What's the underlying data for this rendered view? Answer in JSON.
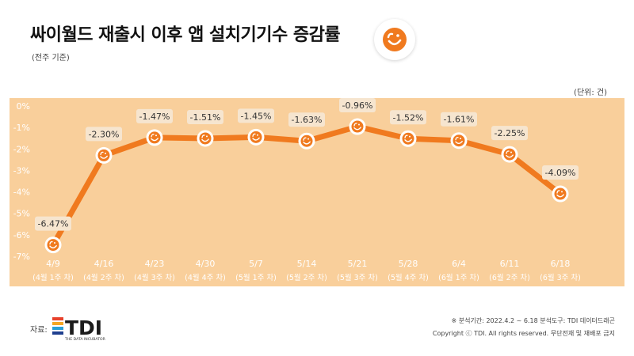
{
  "header": {
    "title": "싸이월드 재출시 이후 앱 설치기기수 증감률",
    "subtitle": "(전주 기준)",
    "unit": "(단위: 건)"
  },
  "colors": {
    "line": "#f07a1f",
    "panel": "#f9cf9b",
    "label_bg": "#f6e5cf",
    "accent": "#f07a1f"
  },
  "icons": {
    "brand": "cyworld-smile-icon",
    "marker": "cyworld-smile-marker-icon"
  },
  "chart_data": {
    "type": "line",
    "categories": [
      "4/9",
      "4/16",
      "4/23",
      "4/30",
      "5/7",
      "5/14",
      "5/21",
      "5/28",
      "6/4",
      "6/11",
      "6/18"
    ],
    "subcategories": [
      "(4월 1주 차)",
      "(4월 2주 차)",
      "(4월 3주 차)",
      "(4월 4주 차)",
      "(5월 1주 차)",
      "(5월 2주 차)",
      "(5월 3주 차)",
      "(5월 4주 차)",
      "(6월 1주 차)",
      "(6월 2주 차)",
      "(6월 3주 차)"
    ],
    "values": [
      -6.47,
      -2.3,
      -1.47,
      -1.51,
      -1.45,
      -1.63,
      -0.96,
      -1.52,
      -1.61,
      -2.25,
      -4.09
    ],
    "data_labels": [
      "-6.47%",
      "-2.30%",
      "-1.47%",
      "-1.51%",
      "-1.45%",
      "-1.63%",
      "-0.96%",
      "-1.52%",
      "-1.61%",
      "-2.25%",
      "-4.09%"
    ],
    "yticks": [
      0,
      -1,
      -2,
      -3,
      -4,
      -5,
      -6,
      -7
    ],
    "ytick_labels": [
      "0%",
      "-1%",
      "-2%",
      "-3%",
      "-4%",
      "-5%",
      "-6%",
      "-7%"
    ],
    "ylim": [
      -7,
      0
    ],
    "grid": false,
    "legend": "none"
  },
  "footer": {
    "source_label": "자료:",
    "brand_name": "TDI",
    "brand_tagline": "THE DATA INCUBATOR",
    "period_note": "※ 분석기간: 2022.4.2 ~ 6.18  분석도구: TDI 데이터드래곤",
    "copyright": "Copyright ⓒ TDI. All rights reserved. 무단전재 및 재배포 금지"
  }
}
